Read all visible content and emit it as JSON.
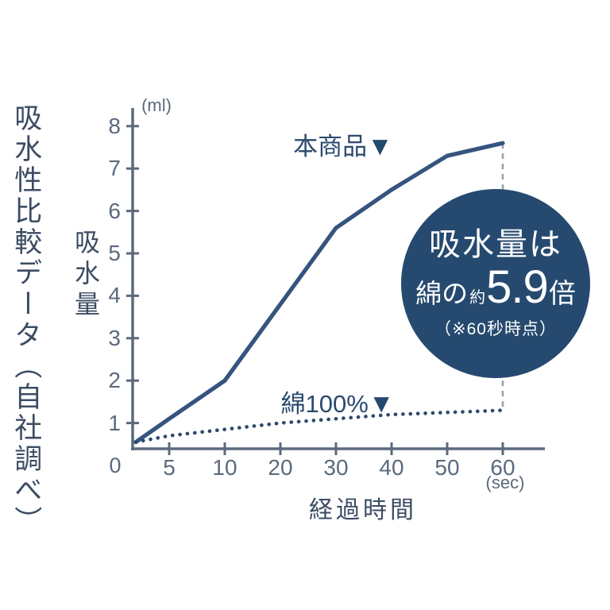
{
  "page": {
    "vertical_title": "吸水性比較データ（自社調べ）"
  },
  "colors": {
    "background": "#ffffff",
    "axis": "#5b6a7d",
    "tick_label": "#5b6a7d",
    "title_text": "#3c4c63",
    "series_solid": "#35547e",
    "series_dotted": "#2d4a6c",
    "series_label_text": "#2b4a6e",
    "dashed_connector": "#95a2b0",
    "badge_background": "#264a6f",
    "badge_text": "#ffffff"
  },
  "chart_data": {
    "type": "line",
    "title": "吸水性比較データ（自社調べ）",
    "xlabel": "経過時間",
    "x_unit": "(sec)",
    "ylabel": "吸水量",
    "y_unit": "(ml)",
    "origin_label": "0",
    "xlim_note": "ticks evenly spaced though values are non-linear",
    "x_ticks": [
      "5",
      "10",
      "20",
      "30",
      "40",
      "50",
      "60"
    ],
    "y_ticks": [
      "1",
      "2",
      "3",
      "4",
      "5",
      "6",
      "7",
      "8"
    ],
    "ylim": [
      0,
      8
    ],
    "x": [
      2,
      5,
      10,
      20,
      30,
      40,
      50,
      60
    ],
    "series": [
      {
        "name": "本商品",
        "marker": "▼",
        "style": "solid",
        "values": [
          0.55,
          1.1,
          2.0,
          3.8,
          5.6,
          6.5,
          7.3,
          7.6
        ]
      },
      {
        "name": "綿100%",
        "marker": "▼",
        "style": "dotted",
        "values": [
          0.55,
          0.7,
          0.85,
          1.0,
          1.1,
          1.2,
          1.25,
          1.3
        ]
      }
    ],
    "dashed_connector_at_x": 60,
    "annotation": {
      "line1": "吸水量は",
      "line2_prefix": "綿の",
      "line2_approx": "約",
      "line2_value": "5.9",
      "line2_suffix": "倍",
      "line3": "（※60秒時点）"
    }
  }
}
